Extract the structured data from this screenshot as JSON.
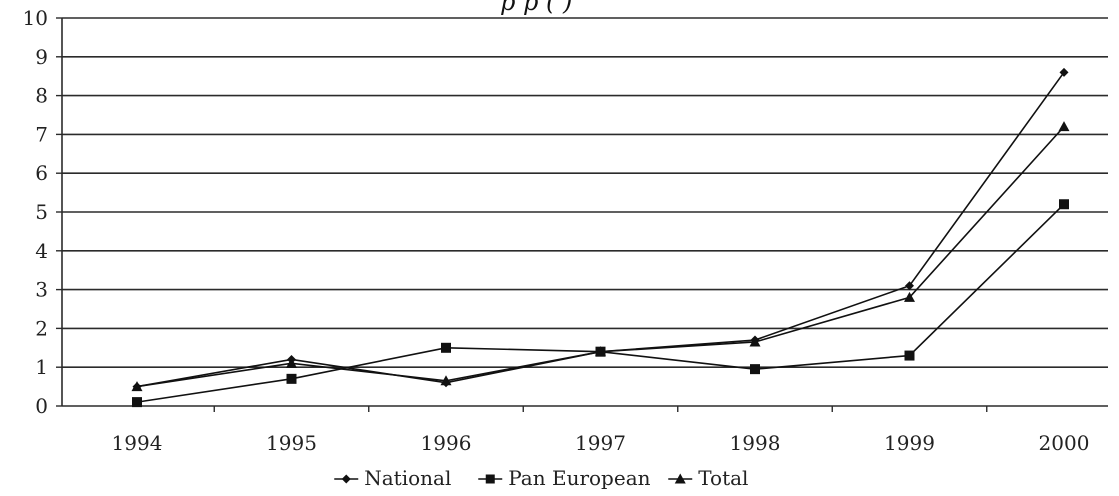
{
  "chart_data": {
    "type": "line",
    "title_fragment": "p     p                              (           )",
    "x": [
      "1994",
      "1995",
      "1996",
      "1997",
      "1998",
      "1999",
      "2000"
    ],
    "ylim": [
      0,
      10
    ],
    "yticks": [
      "0",
      "1",
      "2",
      "3",
      "4",
      "5",
      "6",
      "7",
      "8",
      "9",
      "10"
    ],
    "grid": true,
    "legend_position": "bottom",
    "series": [
      {
        "name": "National",
        "marker": "diamond",
        "values": [
          0.5,
          1.2,
          0.6,
          1.4,
          1.7,
          3.1,
          8.6
        ]
      },
      {
        "name": "Pan European",
        "marker": "square",
        "values": [
          0.1,
          0.7,
          1.5,
          1.4,
          0.95,
          1.3,
          5.2
        ]
      },
      {
        "name": "Total",
        "marker": "triangle",
        "values": [
          0.5,
          1.1,
          0.65,
          1.4,
          1.65,
          2.8,
          7.2
        ]
      }
    ],
    "colors": {
      "line": "#111111",
      "grid": "#2b2b2b",
      "text": "#222222"
    }
  }
}
